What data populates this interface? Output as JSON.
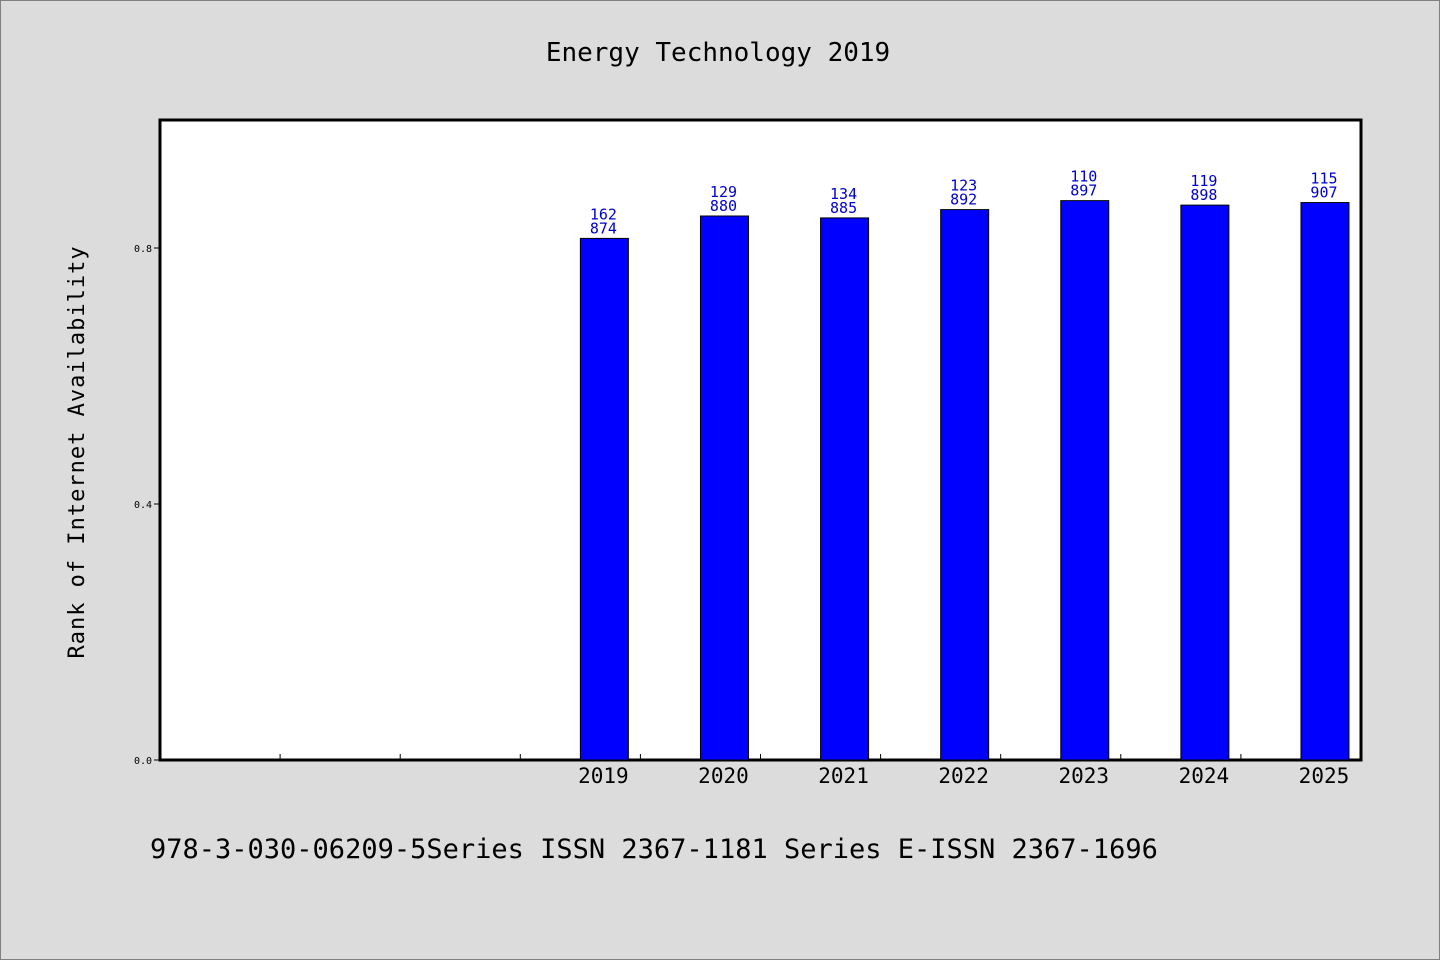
{
  "chart_data": {
    "type": "bar",
    "title": "Energy Technology 2019",
    "xlabel": "",
    "ylabel": "Rank of Internet Availability",
    "categories": [
      "",
      "",
      "",
      "2019",
      "2020",
      "2021",
      "2022",
      "2023",
      "2024",
      "2025"
    ],
    "values": [
      null,
      null,
      null,
      0.815,
      0.85,
      0.847,
      0.86,
      0.874,
      0.867,
      0.871
    ],
    "data_labels": [
      null,
      null,
      null,
      [
        "162",
        "874"
      ],
      [
        "129",
        "880"
      ],
      [
        "134",
        "885"
      ],
      [
        "123",
        "892"
      ],
      [
        "110",
        "897"
      ],
      [
        "119",
        "898"
      ],
      [
        "115",
        "907"
      ]
    ],
    "yticks": [
      "0.0",
      "0.4",
      "0.8"
    ],
    "ylim": [
      0,
      1.0
    ],
    "grid": false,
    "colors": {
      "bar": "#0000ff",
      "label": "#0000cc",
      "background": "#dcdcdc",
      "plot_area": "#ffffff"
    }
  },
  "footer": {
    "text": "978-3-030-06209-5Series ISSN 2367-1181 Series E-ISSN 2367-1696"
  }
}
